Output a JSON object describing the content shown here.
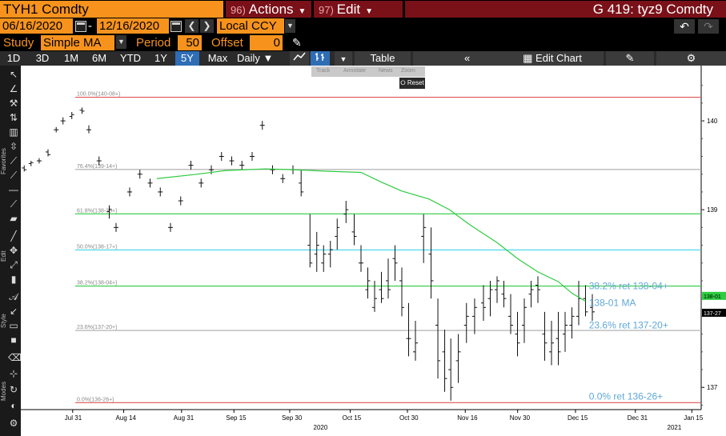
{
  "header": {
    "ticker": "TYH1 Comdty",
    "actions_num": "96)",
    "actions_label": "Actions",
    "edit_num": "97)",
    "edit_label": "Edit",
    "title": "G 419: tyz9 Comdty"
  },
  "range": {
    "start_date": "06/16/2020",
    "end_date": "12/16/2020",
    "separator": "-",
    "currency": "Local CCY"
  },
  "study": {
    "study_label": "Study",
    "study_value": "Simple MA",
    "period_label": "Period",
    "period_value": "50",
    "offset_label": "Offset",
    "offset_value": "0"
  },
  "toolbar": {
    "periods": [
      "1D",
      "3D",
      "1M",
      "6M",
      "YTD",
      "1Y",
      "5Y",
      "Max"
    ],
    "active_period": "5Y",
    "frequency": "Daily",
    "table_label": "Table",
    "edit_chart_label": "Edit Chart"
  },
  "float_toolbar": {
    "items": [
      "Track",
      "Annotate",
      "News",
      "Zoom"
    ],
    "reset_label": "Reset"
  },
  "side_labels": [
    "Favorites",
    "Edit",
    "Style",
    "Modes"
  ],
  "chart_data": {
    "type": "ohlc",
    "price_axis_ticks": [
      "140",
      "139",
      "137"
    ],
    "date_axis_ticks": [
      "Jul 31",
      "Aug 14",
      "Aug 31",
      "Sep 15",
      "Sep 30",
      "Oct 15",
      "Oct 30",
      "Nov 16",
      "Nov 30",
      "Dec 15",
      "Dec 31",
      "Jan 15"
    ],
    "year_labels": [
      "2020",
      "2021"
    ],
    "fib_levels": [
      {
        "label": "100.0%(140-08+)",
        "value": 140.266,
        "color": "#e05555"
      },
      {
        "label": "76.4%(139-14+)",
        "value": 139.453,
        "color": "#aaaaaa"
      },
      {
        "label": "61.8%(138-30+)",
        "value": 138.953,
        "color": "#2ecc40"
      },
      {
        "label": "50.0%(138-17+)",
        "value": 138.547,
        "color": "#3fd7e8"
      },
      {
        "label": "38.2%(138-04+)",
        "value": 138.141,
        "color": "#2ecc40"
      },
      {
        "label": "23.6%(137-20+)",
        "value": 137.641,
        "color": "#aaaaaa"
      },
      {
        "label": "0.0%(136-26+)",
        "value": 136.828,
        "color": "#e05555"
      }
    ],
    "annotations": [
      {
        "text": "38.2% ret 138-04+",
        "value": 138.141
      },
      {
        "text": "138-01 MA",
        "value": 137.95
      },
      {
        "text": "23.6% ret 137-20+",
        "value": 137.7
      },
      {
        "text": "0.0% ret 136-26+",
        "value": 136.9
      }
    ],
    "right_tags": [
      {
        "text": "138-01",
        "value": 138.03,
        "bg": "#2ecc40"
      },
      {
        "text": "137-27",
        "value": 137.84,
        "bg": "#000000"
      }
    ],
    "ylim": [
      136.75,
      140.55
    ],
    "moving_average": {
      "name": "Simple MA 50",
      "color": "#2ecc40",
      "points": [
        [
          0.2,
          139.35
        ],
        [
          0.26,
          139.4
        ],
        [
          0.3,
          139.44
        ],
        [
          0.36,
          139.46
        ],
        [
          0.4,
          139.45
        ],
        [
          0.43,
          139.44
        ],
        [
          0.46,
          139.43
        ],
        [
          0.5,
          139.42
        ],
        [
          0.53,
          139.31
        ],
        [
          0.56,
          139.21
        ],
        [
          0.6,
          139.12
        ],
        [
          0.63,
          139.0
        ],
        [
          0.66,
          138.83
        ],
        [
          0.7,
          138.63
        ],
        [
          0.73,
          138.45
        ],
        [
          0.76,
          138.3
        ],
        [
          0.79,
          138.19
        ],
        [
          0.81,
          138.06
        ],
        [
          0.83,
          137.97
        ]
      ]
    },
    "bars_prefix": [
      {
        "x": 0.005,
        "o": 139.47,
        "h": 139.5,
        "l": 139.43,
        "c": 139.45
      },
      {
        "x": 0.015,
        "o": 139.52,
        "h": 139.55,
        "l": 139.49,
        "c": 139.53
      },
      {
        "x": 0.027,
        "o": 139.55,
        "h": 139.58,
        "l": 139.52,
        "c": 139.55
      },
      {
        "x": 0.04,
        "o": 139.65,
        "h": 139.68,
        "l": 139.6,
        "c": 139.62
      },
      {
        "x": 0.052,
        "o": 139.9,
        "h": 139.93,
        "l": 139.87,
        "c": 139.9
      },
      {
        "x": 0.062,
        "o": 140.0,
        "h": 140.04,
        "l": 139.96,
        "c": 140.0
      },
      {
        "x": 0.075,
        "o": 140.05,
        "h": 140.1,
        "l": 140.02,
        "c": 140.07
      },
      {
        "x": 0.09,
        "o": 140.12,
        "h": 140.15,
        "l": 140.08,
        "c": 140.11
      },
      {
        "x": 0.1,
        "o": 139.9,
        "h": 139.95,
        "l": 139.86,
        "c": 139.9
      },
      {
        "x": 0.115,
        "o": 139.55,
        "h": 139.6,
        "l": 139.5,
        "c": 139.55
      }
    ],
    "bars": [
      {
        "x": 0.13,
        "o": 138.98,
        "h": 139.05,
        "l": 138.9,
        "c": 139.0
      },
      {
        "x": 0.14,
        "o": 138.8,
        "h": 138.85,
        "l": 138.75,
        "c": 138.8
      },
      {
        "x": 0.16,
        "o": 139.2,
        "h": 139.25,
        "l": 139.15,
        "c": 139.2
      },
      {
        "x": 0.175,
        "o": 139.4,
        "h": 139.45,
        "l": 139.35,
        "c": 139.4
      },
      {
        "x": 0.19,
        "o": 139.3,
        "h": 139.35,
        "l": 139.25,
        "c": 139.3
      },
      {
        "x": 0.205,
        "o": 139.2,
        "h": 139.25,
        "l": 139.15,
        "c": 139.2
      },
      {
        "x": 0.22,
        "o": 138.8,
        "h": 138.85,
        "l": 138.75,
        "c": 138.8
      },
      {
        "x": 0.235,
        "o": 139.1,
        "h": 139.15,
        "l": 139.05,
        "c": 139.1
      },
      {
        "x": 0.25,
        "o": 139.5,
        "h": 139.55,
        "l": 139.45,
        "c": 139.5
      },
      {
        "x": 0.265,
        "o": 139.3,
        "h": 139.35,
        "l": 139.25,
        "c": 139.3
      },
      {
        "x": 0.28,
        "o": 139.45,
        "h": 139.5,
        "l": 139.4,
        "c": 139.45
      },
      {
        "x": 0.295,
        "o": 139.6,
        "h": 139.65,
        "l": 139.55,
        "c": 139.6
      },
      {
        "x": 0.31,
        "o": 139.55,
        "h": 139.6,
        "l": 139.5,
        "c": 139.55
      },
      {
        "x": 0.325,
        "o": 139.5,
        "h": 139.55,
        "l": 139.45,
        "c": 139.5
      },
      {
        "x": 0.34,
        "o": 139.6,
        "h": 139.65,
        "l": 139.55,
        "c": 139.6
      },
      {
        "x": 0.355,
        "o": 139.95,
        "h": 140.0,
        "l": 139.9,
        "c": 139.95
      },
      {
        "x": 0.37,
        "o": 139.45,
        "h": 139.5,
        "l": 139.4,
        "c": 139.45
      },
      {
        "x": 0.385,
        "o": 139.35,
        "h": 139.4,
        "l": 139.3,
        "c": 139.35
      },
      {
        "x": 0.4,
        "o": 139.45,
        "h": 139.5,
        "l": 139.4,
        "c": 139.45
      },
      {
        "x": 0.412,
        "o": 139.3,
        "h": 139.45,
        "l": 139.15,
        "c": 139.2
      },
      {
        "x": 0.425,
        "o": 138.6,
        "h": 138.95,
        "l": 138.35,
        "c": 138.4
      },
      {
        "x": 0.435,
        "o": 138.5,
        "h": 138.75,
        "l": 138.3,
        "c": 138.6
      },
      {
        "x": 0.445,
        "o": 138.4,
        "h": 138.6,
        "l": 138.3,
        "c": 138.5
      },
      {
        "x": 0.455,
        "o": 138.5,
        "h": 138.65,
        "l": 138.35,
        "c": 138.55
      },
      {
        "x": 0.465,
        "o": 138.7,
        "h": 138.9,
        "l": 138.55,
        "c": 138.8
      },
      {
        "x": 0.478,
        "o": 138.95,
        "h": 139.1,
        "l": 138.85,
        "c": 139.0
      },
      {
        "x": 0.49,
        "o": 138.75,
        "h": 138.95,
        "l": 138.6,
        "c": 138.7
      },
      {
        "x": 0.5,
        "o": 138.4,
        "h": 138.6,
        "l": 138.3,
        "c": 138.4
      },
      {
        "x": 0.51,
        "o": 138.1,
        "h": 138.35,
        "l": 138.0,
        "c": 138.2
      },
      {
        "x": 0.52,
        "o": 137.9,
        "h": 138.2,
        "l": 137.85,
        "c": 138.0
      },
      {
        "x": 0.53,
        "o": 138.1,
        "h": 138.3,
        "l": 137.95,
        "c": 138.0
      },
      {
        "x": 0.54,
        "o": 138.2,
        "h": 138.45,
        "l": 138.0,
        "c": 138.1
      },
      {
        "x": 0.55,
        "o": 138.45,
        "h": 138.6,
        "l": 138.2,
        "c": 138.4
      },
      {
        "x": 0.56,
        "o": 138.2,
        "h": 138.35,
        "l": 137.8,
        "c": 137.9
      },
      {
        "x": 0.57,
        "o": 137.55,
        "h": 137.95,
        "l": 137.35,
        "c": 137.55
      },
      {
        "x": 0.58,
        "o": 137.4,
        "h": 137.75,
        "l": 137.3,
        "c": 137.5
      },
      {
        "x": 0.592,
        "o": 138.7,
        "h": 138.95,
        "l": 138.4,
        "c": 138.8
      },
      {
        "x": 0.603,
        "o": 138.5,
        "h": 138.8,
        "l": 138.0,
        "c": 138.2
      },
      {
        "x": 0.613,
        "o": 137.7,
        "h": 138.0,
        "l": 137.1,
        "c": 137.3
      },
      {
        "x": 0.623,
        "o": 137.4,
        "h": 137.65,
        "l": 136.95,
        "c": 137.1
      },
      {
        "x": 0.632,
        "o": 137.2,
        "h": 137.55,
        "l": 136.85,
        "c": 137.0
      },
      {
        "x": 0.643,
        "o": 137.3,
        "h": 137.6,
        "l": 137.05,
        "c": 137.4
      },
      {
        "x": 0.655,
        "o": 137.7,
        "h": 137.95,
        "l": 137.5,
        "c": 137.8
      },
      {
        "x": 0.667,
        "o": 137.8,
        "h": 138.0,
        "l": 137.6,
        "c": 137.9
      },
      {
        "x": 0.68,
        "o": 137.95,
        "h": 138.15,
        "l": 137.75,
        "c": 137.9
      },
      {
        "x": 0.69,
        "o": 138.0,
        "h": 138.2,
        "l": 137.8,
        "c": 138.1
      },
      {
        "x": 0.7,
        "o": 138.1,
        "h": 138.25,
        "l": 137.95,
        "c": 138.2
      },
      {
        "x": 0.71,
        "o": 138.05,
        "h": 138.2,
        "l": 137.9,
        "c": 138.0
      },
      {
        "x": 0.72,
        "o": 137.8,
        "h": 138.05,
        "l": 137.6,
        "c": 137.7
      },
      {
        "x": 0.73,
        "o": 137.6,
        "h": 137.85,
        "l": 137.35,
        "c": 137.5
      },
      {
        "x": 0.74,
        "o": 137.7,
        "h": 138.0,
        "l": 137.5,
        "c": 137.9
      },
      {
        "x": 0.75,
        "o": 138.05,
        "h": 138.2,
        "l": 137.9,
        "c": 138.1
      },
      {
        "x": 0.76,
        "o": 138.15,
        "h": 138.25,
        "l": 137.95,
        "c": 138.1
      },
      {
        "x": 0.77,
        "o": 137.6,
        "h": 137.85,
        "l": 137.3,
        "c": 137.5
      },
      {
        "x": 0.78,
        "o": 137.4,
        "h": 137.75,
        "l": 137.25,
        "c": 137.5
      },
      {
        "x": 0.79,
        "o": 137.55,
        "h": 137.85,
        "l": 137.25,
        "c": 137.4
      },
      {
        "x": 0.8,
        "o": 137.6,
        "h": 137.85,
        "l": 137.4,
        "c": 137.7
      },
      {
        "x": 0.81,
        "o": 137.7,
        "h": 137.9,
        "l": 137.55,
        "c": 137.8
      },
      {
        "x": 0.82,
        "o": 137.8,
        "h": 138.2,
        "l": 137.7,
        "c": 138.0
      },
      {
        "x": 0.83,
        "o": 138.0,
        "h": 138.15,
        "l": 137.8,
        "c": 137.85
      },
      {
        "x": 0.84,
        "o": 137.9,
        "h": 138.05,
        "l": 137.75,
        "c": 137.85
      }
    ]
  }
}
